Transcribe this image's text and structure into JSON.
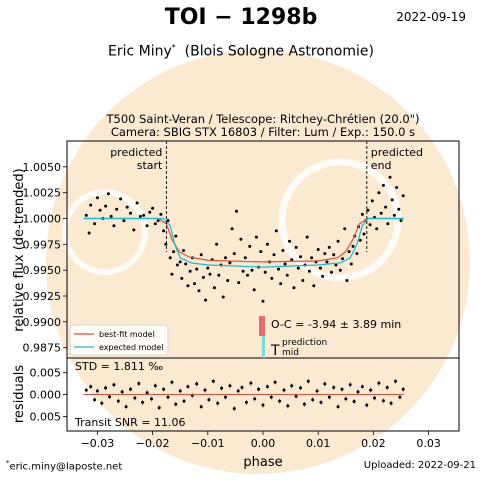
{
  "header": {
    "title": "TOI − 1298b",
    "date": "2022-09-19",
    "author": "Eric Miny",
    "author_marker": "*",
    "affiliation": "(Blois Sologne Astronomie)"
  },
  "observation": {
    "line1": "T500 Saint-Veran / Telescope: Ritchey-Chrétien (20.0\")",
    "line2": "Camera: SBIG STX 16803 / Filter: Lum / Exp.: 150.0 s"
  },
  "footer": {
    "email_marker": "*",
    "email": "eric.miny@laposte.net",
    "uploaded": "Uploaded: 2022-09-21"
  },
  "colors": {
    "best_fit": "#d9523f",
    "expected": "#22b8c8",
    "oc_bar": "#e07070",
    "tmid_bar": "#7fd6d6",
    "watermark": "#fbe5c8"
  },
  "chart_data": {
    "type": "scatter",
    "xlabel": "phase",
    "x_ticks": [
      "−0.03",
      "−0.02",
      "−0.01",
      "0.00",
      "0.01",
      "0.02",
      "0.03"
    ],
    "x_tick_values": [
      -0.03,
      -0.02,
      -0.01,
      0.0,
      0.01,
      0.02,
      0.03
    ],
    "xlim": [
      -0.0355,
      0.0355
    ],
    "main_panel": {
      "ylabel": "relative flux (de-trended)",
      "ylim": [
        0.9865,
        1.0075
      ],
      "y_ticks": [
        "1.0050",
        "1.0025",
        "1.0000",
        "0.9975",
        "0.9950",
        "0.9925",
        "0.9900",
        "0.9875"
      ],
      "y_tick_values": [
        1.005,
        1.0025,
        1.0,
        0.9975,
        0.995,
        0.9925,
        0.99,
        0.9875
      ],
      "predicted_start": {
        "label_line1": "predicted",
        "label_line2": "start",
        "phase": -0.0175
      },
      "predicted_end": {
        "label_line1": "predicted",
        "label_line2": "end",
        "phase": 0.0188
      },
      "models": [
        {
          "name": "best-fit model",
          "color": "#d9523f",
          "points": [
            [
              -0.0325,
              1.0
            ],
            [
              -0.019,
              1.0
            ],
            [
              -0.0175,
              0.9995
            ],
            [
              -0.0165,
              0.998
            ],
            [
              -0.0152,
              0.9968
            ],
            [
              -0.0135,
              0.9963
            ],
            [
              -0.01,
              0.99595
            ],
            [
              0.0,
              0.9958
            ],
            [
              0.01,
              0.9959
            ],
            [
              0.0135,
              0.9962
            ],
            [
              0.015,
              0.9968
            ],
            [
              0.0163,
              0.998
            ],
            [
              0.0175,
              0.9995
            ],
            [
              0.019,
              1.0
            ],
            [
              0.0255,
              1.0
            ]
          ]
        },
        {
          "name": "expected model",
          "color": "#22b8c8",
          "points": [
            [
              -0.0325,
              1.0
            ],
            [
              -0.018,
              1.0
            ],
            [
              -0.0168,
              0.9993
            ],
            [
              -0.016,
              0.9975
            ],
            [
              -0.015,
              0.9962
            ],
            [
              -0.013,
              0.9957
            ],
            [
              -0.01,
              0.9955
            ],
            [
              0.0,
              0.9953
            ],
            [
              0.01,
              0.9955
            ],
            [
              0.014,
              0.9957
            ],
            [
              0.0158,
              0.9962
            ],
            [
              0.017,
              0.9975
            ],
            [
              0.018,
              0.9993
            ],
            [
              0.019,
              1.0
            ],
            [
              0.0255,
              1.0
            ]
          ]
        }
      ],
      "points": [
        [
          -0.032,
          1.0003
        ],
        [
          -0.0315,
          0.9986
        ],
        [
          -0.0312,
          1.0013
        ],
        [
          -0.0305,
          0.9995
        ],
        [
          -0.03,
          1.002
        ],
        [
          -0.0295,
          1.0008
        ],
        [
          -0.029,
          1.0
        ],
        [
          -0.0285,
          1.0012
        ],
        [
          -0.028,
          1.0024
        ],
        [
          -0.0275,
          1.0002
        ],
        [
          -0.027,
          0.9993
        ],
        [
          -0.0265,
          1.0009
        ],
        [
          -0.0258,
          1.0019
        ],
        [
          -0.0252,
          0.9998
        ],
        [
          -0.0246,
          1.0011
        ],
        [
          -0.024,
          1.0005
        ],
        [
          -0.0234,
          0.9989
        ],
        [
          -0.0228,
          1.0015
        ],
        [
          -0.0222,
          1.0002
        ],
        [
          -0.0216,
          1.0003
        ],
        [
          -0.021,
          0.9993
        ],
        [
          -0.0205,
          1.0006
        ],
        [
          -0.02,
          1.001
        ],
        [
          -0.0195,
          0.9995
        ],
        [
          -0.019,
          0.9998
        ],
        [
          -0.0185,
          1.0004
        ],
        [
          -0.018,
          0.9988
        ],
        [
          -0.0176,
          0.9975
        ],
        [
          -0.0172,
          0.9998
        ],
        [
          -0.0168,
          0.9962
        ],
        [
          -0.0165,
          0.9946
        ],
        [
          -0.0162,
          0.9968
        ],
        [
          -0.0158,
          0.9983
        ],
        [
          -0.0155,
          0.9955
        ],
        [
          -0.015,
          0.9958
        ],
        [
          -0.0147,
          0.9942
        ],
        [
          -0.0144,
          0.9969
        ],
        [
          -0.014,
          0.9956
        ],
        [
          -0.0136,
          0.9935
        ],
        [
          -0.0132,
          0.9949
        ],
        [
          -0.0128,
          0.9962
        ],
        [
          -0.0124,
          0.9937
        ],
        [
          -0.012,
          0.9951
        ],
        [
          -0.0116,
          0.993
        ],
        [
          -0.0112,
          0.9965
        ],
        [
          -0.0108,
          0.9943
        ],
        [
          -0.0104,
          0.9921
        ],
        [
          -0.01,
          0.9952
        ],
        [
          -0.0096,
          0.9946
        ],
        [
          -0.0092,
          0.996
        ],
        [
          -0.0088,
          0.9933
        ],
        [
          -0.0084,
          0.9975
        ],
        [
          -0.008,
          0.9945
        ],
        [
          -0.0076,
          0.9955
        ],
        [
          -0.0072,
          0.9924
        ],
        [
          -0.0068,
          0.9962
        ],
        [
          -0.0064,
          0.994
        ],
        [
          -0.006,
          0.9957
        ],
        [
          -0.0056,
          0.999
        ],
        [
          -0.0052,
          0.9966
        ],
        [
          -0.0048,
          1.0007
        ],
        [
          -0.0044,
          0.9938
        ],
        [
          -0.004,
          0.998
        ],
        [
          -0.0036,
          0.9949
        ],
        [
          -0.0032,
          0.9962
        ],
        [
          -0.0028,
          0.9945
        ],
        [
          -0.0024,
          0.9973
        ],
        [
          -0.002,
          0.995
        ],
        [
          -0.0016,
          0.9931
        ],
        [
          -0.0012,
          0.9982
        ],
        [
          -0.0008,
          0.9953
        ],
        [
          -0.0004,
          0.9968
        ],
        [
          0.0,
          0.992
        ],
        [
          0.0004,
          0.9948
        ],
        [
          0.0008,
          0.9975
        ],
        [
          0.0012,
          0.9958
        ],
        [
          0.0016,
          0.9942
        ],
        [
          0.002,
          0.9965
        ],
        [
          0.0024,
          0.9988
        ],
        [
          0.0028,
          0.9951
        ],
        [
          0.0032,
          0.9937
        ],
        [
          0.0036,
          0.9969
        ],
        [
          0.004,
          0.9956
        ],
        [
          0.0044,
          0.9945
        ],
        [
          0.0048,
          0.9978
        ],
        [
          0.0052,
          0.996
        ],
        [
          0.0056,
          0.9933
        ],
        [
          0.006,
          0.9972
        ],
        [
          0.0064,
          0.9952
        ],
        [
          0.0068,
          0.9963
        ],
        [
          0.0072,
          0.994
        ],
        [
          0.0076,
          0.9955
        ],
        [
          0.008,
          0.9982
        ],
        [
          0.0084,
          0.9949
        ],
        [
          0.0088,
          0.9962
        ],
        [
          0.0092,
          0.9935
        ],
        [
          0.0096,
          0.9958
        ],
        [
          0.01,
          0.997
        ],
        [
          0.0104,
          0.9952
        ],
        [
          0.0108,
          0.9944
        ],
        [
          0.0112,
          0.9966
        ],
        [
          0.0116,
          0.9958
        ],
        [
          0.012,
          0.9972
        ],
        [
          0.0124,
          0.9948
        ],
        [
          0.0128,
          0.9965
        ],
        [
          0.0132,
          0.9955
        ],
        [
          0.0136,
          0.9978
        ],
        [
          0.014,
          0.995
        ],
        [
          0.0144,
          0.9961
        ],
        [
          0.0148,
          0.999
        ],
        [
          0.0152,
          0.994
        ],
        [
          0.0156,
          0.9968
        ],
        [
          0.016,
          0.9956
        ],
        [
          0.0163,
          0.9973
        ],
        [
          0.0166,
          0.9983
        ],
        [
          0.017,
          0.9966
        ],
        [
          0.0173,
          0.9992
        ],
        [
          0.0176,
          0.9979
        ],
        [
          0.018,
          1.0004
        ],
        [
          0.0183,
          0.9985
        ],
        [
          0.0186,
          0.9998
        ],
        [
          0.019,
          1.0008
        ],
        [
          0.0194,
          0.9994
        ],
        [
          0.0198,
          1.0017
        ],
        [
          0.0202,
          1.0001
        ],
        [
          0.0206,
          0.999
        ],
        [
          0.021,
          1.0025
        ],
        [
          0.0214,
          1.0005
        ],
        [
          0.0218,
          1.0032
        ],
        [
          0.0222,
          1.0011
        ],
        [
          0.0226,
          0.9995
        ],
        [
          0.023,
          1.004
        ],
        [
          0.0234,
          1.0018
        ],
        [
          0.0238,
          1.0003
        ],
        [
          0.0242,
          1.003
        ],
        [
          0.0246,
          1.0009
        ],
        [
          0.025,
          0.9998
        ],
        [
          0.0254,
          1.0022
        ]
      ],
      "legend": [
        {
          "label": "best-fit model",
          "color": "#d9523f"
        },
        {
          "label": "expected model",
          "color": "#22b8c8"
        }
      ],
      "oc_label": "O-C = -3.94 ± 3.89 min",
      "tmid_symbol": "T",
      "tmid_sup": "prediction",
      "tmid_sub": "mid"
    },
    "residual_panel": {
      "ylabel": "residuals",
      "ylim": [
        -0.0083,
        0.0083
      ],
      "y_ticks": [
        "0.005",
        "0.000",
        "0.005"
      ],
      "y_tick_values": [
        0.005,
        0.0,
        -0.005
      ],
      "std_label": "STD = 1.811 ‰",
      "snr_label": "Transit SNR = 11.06",
      "residuals": [
        [
          -0.032,
          0.001
        ],
        [
          -0.0312,
          0.0018
        ],
        [
          -0.0305,
          -0.0012
        ],
        [
          -0.03,
          0.0008
        ],
        [
          -0.0292,
          -0.002
        ],
        [
          -0.0285,
          0.0015
        ],
        [
          -0.0278,
          -0.0005
        ],
        [
          -0.027,
          0.0022
        ],
        [
          -0.0262,
          -0.0015
        ],
        [
          -0.0255,
          0.0006
        ],
        [
          -0.0248,
          -0.0028
        ],
        [
          -0.024,
          0.0012
        ],
        [
          -0.0232,
          -0.0008
        ],
        [
          -0.0225,
          0.0025
        ],
        [
          -0.0218,
          -0.0018
        ],
        [
          -0.021,
          0.0004
        ],
        [
          -0.0202,
          -0.001
        ],
        [
          -0.0195,
          0.002
        ],
        [
          -0.0188,
          -0.003
        ],
        [
          -0.018,
          0.0012
        ],
        [
          -0.0172,
          -0.0006
        ],
        [
          -0.0165,
          0.0028
        ],
        [
          -0.0158,
          -0.0022
        ],
        [
          -0.015,
          0.0008
        ],
        [
          -0.0143,
          -0.0015
        ],
        [
          -0.0136,
          0.0018
        ],
        [
          -0.0128,
          -0.0002
        ],
        [
          -0.012,
          0.0024
        ],
        [
          -0.0112,
          -0.0028
        ],
        [
          -0.0105,
          0.001
        ],
        [
          -0.0098,
          -0.0012
        ],
        [
          -0.009,
          0.003
        ],
        [
          -0.0082,
          -0.002
        ],
        [
          -0.0075,
          0.0014
        ],
        [
          -0.0068,
          -0.0006
        ],
        [
          -0.006,
          0.002
        ],
        [
          -0.0052,
          -0.0032
        ],
        [
          -0.0045,
          0.0008
        ],
        [
          -0.0038,
          0.0016
        ],
        [
          -0.003,
          -0.0018
        ],
        [
          -0.0022,
          0.0026
        ],
        [
          -0.0015,
          -0.001
        ],
        [
          -0.0008,
          0.0012
        ],
        [
          0.0,
          -0.0024
        ],
        [
          0.0008,
          0.0018
        ],
        [
          0.0015,
          -0.0006
        ],
        [
          0.0022,
          0.0028
        ],
        [
          0.003,
          -0.0015
        ],
        [
          0.0038,
          0.001
        ],
        [
          0.0045,
          -0.0026
        ],
        [
          0.0052,
          0.002
        ],
        [
          0.006,
          -0.0004
        ],
        [
          0.0068,
          0.0015
        ],
        [
          0.0075,
          -0.0022
        ],
        [
          0.0082,
          0.003
        ],
        [
          0.009,
          -0.0012
        ],
        [
          0.0098,
          0.0008
        ],
        [
          0.0105,
          -0.0018
        ],
        [
          0.0112,
          0.0024
        ],
        [
          0.012,
          -0.0006
        ],
        [
          0.0128,
          0.0016
        ],
        [
          0.0136,
          -0.0028
        ],
        [
          0.0143,
          0.0012
        ],
        [
          0.015,
          -0.001
        ],
        [
          0.0158,
          0.0022
        ],
        [
          0.0165,
          -0.0016
        ],
        [
          0.0172,
          0.0006
        ],
        [
          0.018,
          0.0018
        ],
        [
          0.0188,
          -0.0024
        ],
        [
          0.0195,
          0.001
        ],
        [
          0.0202,
          -0.0008
        ],
        [
          0.021,
          0.0026
        ],
        [
          0.0218,
          -0.0014
        ],
        [
          0.0225,
          0.0016
        ],
        [
          0.0232,
          -0.002
        ],
        [
          0.024,
          0.003
        ],
        [
          0.0248,
          -0.0006
        ],
        [
          0.0254,
          0.0012
        ]
      ]
    }
  }
}
